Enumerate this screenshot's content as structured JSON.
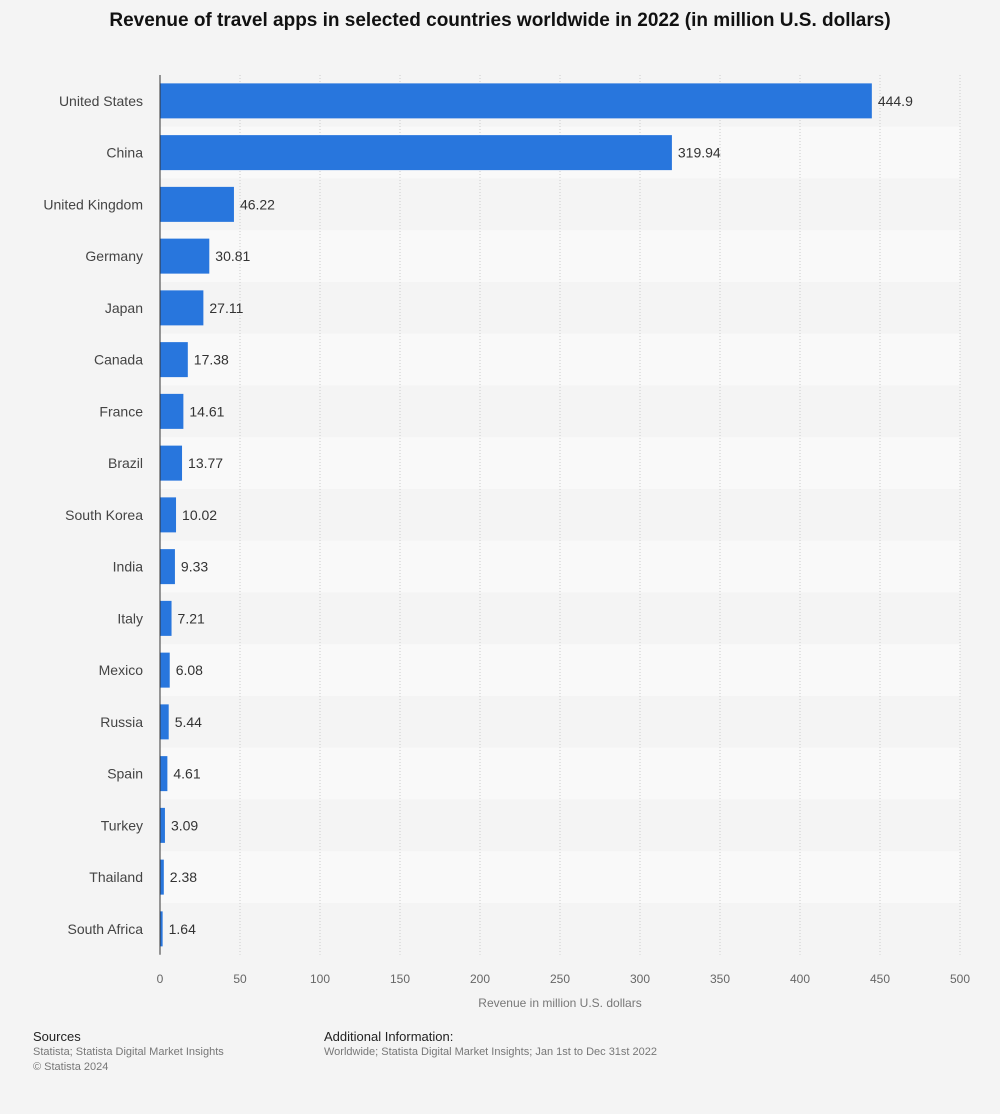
{
  "colors": {
    "bar": "#2876dd",
    "background": "#f4f4f4",
    "band_light": "#f9f9f9",
    "band_dark": "#f4f4f4",
    "gridline": "#cccccc",
    "axis": "#333333"
  },
  "chart_data": {
    "type": "bar",
    "orientation": "horizontal",
    "title": "Revenue of travel apps in selected countries worldwide in 2022 (in million U.S. dollars)",
    "xlabel": "Revenue in million U.S. dollars",
    "ylabel": "",
    "categories": [
      "United States",
      "China",
      "United Kingdom",
      "Germany",
      "Japan",
      "Canada",
      "France",
      "Brazil",
      "South Korea",
      "India",
      "Italy",
      "Mexico",
      "Russia",
      "Spain",
      "Turkey",
      "Thailand",
      "South Africa"
    ],
    "values": [
      444.9,
      319.94,
      46.22,
      30.81,
      27.11,
      17.38,
      14.61,
      13.77,
      10.02,
      9.33,
      7.21,
      6.08,
      5.44,
      4.61,
      3.09,
      2.38,
      1.64
    ],
    "value_labels": [
      "444.9",
      "319.94",
      "46.22",
      "30.81",
      "27.11",
      "17.38",
      "14.61",
      "13.77",
      "10.02",
      "9.33",
      "7.21",
      "6.08",
      "5.44",
      "4.61",
      "3.09",
      "2.38",
      "1.64"
    ],
    "xlim": [
      0,
      500
    ],
    "xticks": [
      0,
      50,
      100,
      150,
      200,
      250,
      300,
      350,
      400,
      450,
      500
    ],
    "grid": true,
    "legend": "none"
  },
  "footer": {
    "sources_heading": "Sources",
    "sources_line1": "Statista; Statista Digital Market Insights",
    "sources_line2": "© Statista 2024",
    "additional_heading": "Additional Information:",
    "additional_text": "Worldwide; Statista Digital Market Insights; Jan 1st to Dec 31st 2022"
  }
}
